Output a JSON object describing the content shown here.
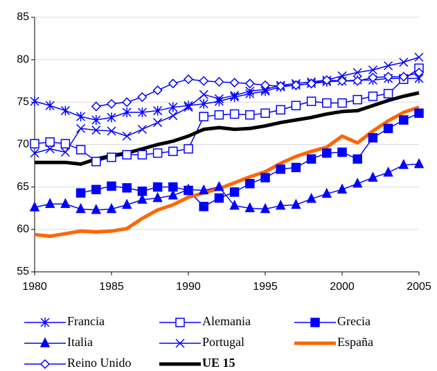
{
  "chart_data": {
    "type": "line",
    "x": [
      1980,
      1981,
      1982,
      1983,
      1984,
      1985,
      1986,
      1987,
      1988,
      1989,
      1990,
      1991,
      1992,
      1993,
      1994,
      1995,
      1996,
      1997,
      1998,
      1999,
      2000,
      2001,
      2002,
      2003,
      2004,
      2005
    ],
    "xlim": [
      1980,
      2005
    ],
    "xticks": [
      1980,
      1985,
      1990,
      1995,
      2000,
      2005
    ],
    "ylim": [
      55,
      85
    ],
    "yticks": [
      55,
      60,
      65,
      70,
      75,
      80,
      85
    ],
    "grid": true,
    "series": [
      {
        "name": "Francia",
        "color": "#0000ff",
        "marker": "asterisk",
        "values": [
          75.1,
          74.6,
          74.0,
          73.3,
          72.9,
          73.2,
          73.8,
          73.8,
          74.0,
          74.4,
          74.6,
          74.8,
          75.1,
          75.6,
          76.0,
          76.3,
          76.8,
          77.0,
          77.2,
          77.4,
          77.5,
          77.6,
          77.6,
          77.8,
          77.8,
          77.8
        ]
      },
      {
        "name": "Alemania",
        "color": "#0000ff",
        "marker": "square-open",
        "values": [
          70.1,
          70.3,
          70.1,
          69.4,
          68.0,
          68.5,
          68.8,
          68.8,
          69.0,
          69.2,
          69.5,
          73.3,
          73.5,
          73.6,
          73.5,
          73.7,
          74.1,
          74.6,
          75.1,
          74.9,
          74.9,
          75.3,
          75.7,
          76.0,
          77.7,
          79.0
        ]
      },
      {
        "name": "Grecia",
        "color": "#0000ff",
        "marker": "square",
        "values": [
          null,
          null,
          null,
          64.3,
          64.7,
          65.1,
          64.9,
          64.5,
          65.0,
          65.0,
          64.6,
          62.7,
          63.7,
          64.4,
          65.4,
          66.1,
          67.1,
          67.3,
          68.3,
          69.0,
          69.1,
          68.3,
          70.8,
          71.9,
          72.9,
          73.7
        ]
      },
      {
        "name": "Italia",
        "color": "#0000ff",
        "marker": "triangle",
        "values": [
          62.6,
          63.0,
          63.0,
          62.4,
          62.3,
          62.4,
          62.9,
          63.5,
          63.7,
          64.0,
          64.7,
          64.6,
          65.0,
          62.8,
          62.5,
          62.4,
          62.8,
          62.9,
          63.6,
          64.2,
          64.7,
          65.4,
          66.1,
          66.7,
          67.6,
          67.7
        ]
      },
      {
        "name": "Portugal",
        "color": "#0000ff",
        "marker": "x",
        "values": [
          69.0,
          69.5,
          69.1,
          71.9,
          71.7,
          71.6,
          71.0,
          71.8,
          72.6,
          73.4,
          74.4,
          75.9,
          75.4,
          75.8,
          76.3,
          76.5,
          77.0,
          77.2,
          77.4,
          77.6,
          78.1,
          78.5,
          78.8,
          79.3,
          79.7,
          80.3
        ]
      },
      {
        "name": "España",
        "color": "#ff6600",
        "marker": "none",
        "values": [
          59.4,
          59.2,
          59.5,
          59.8,
          59.7,
          59.8,
          60.1,
          61.3,
          62.3,
          62.9,
          63.8,
          64.3,
          64.8,
          65.5,
          66.2,
          66.8,
          67.8,
          68.6,
          69.2,
          69.7,
          71.0,
          70.2,
          71.6,
          72.8,
          73.8,
          74.4
        ]
      },
      {
        "name": "Reino Unido",
        "color": "#0000ff",
        "marker": "diamond-open",
        "values": [
          null,
          null,
          null,
          null,
          74.5,
          74.8,
          75.0,
          75.6,
          76.4,
          77.2,
          77.7,
          77.5,
          77.4,
          77.3,
          77.2,
          77.0,
          76.9,
          77.0,
          77.2,
          77.6,
          77.5,
          77.5,
          77.9,
          78.0,
          78.0,
          78.5
        ]
      },
      {
        "name": "UE 15",
        "color": "#000000",
        "marker": "none",
        "values": [
          67.9,
          67.9,
          67.9,
          67.7,
          68.3,
          68.7,
          69.0,
          69.5,
          70.0,
          70.4,
          71.0,
          71.8,
          72.0,
          71.8,
          71.9,
          72.2,
          72.6,
          72.9,
          73.2,
          73.6,
          73.9,
          74.0,
          74.6,
          75.2,
          75.7,
          76.1
        ]
      }
    ]
  }
}
